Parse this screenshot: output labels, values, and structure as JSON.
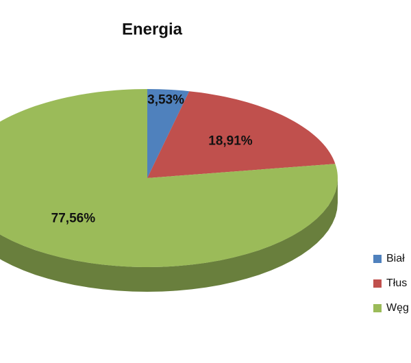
{
  "chart_data": {
    "type": "pie",
    "title": "Energia",
    "categories": [
      "Biał",
      "Tłus",
      "Węg"
    ],
    "values": [
      3.53,
      18.91,
      77.56
    ],
    "value_labels": [
      "3,53%",
      "18,91%",
      "77,56%"
    ],
    "colors": [
      "#4f81bd",
      "#c0504d",
      "#9bbb59"
    ],
    "legend": "right"
  }
}
